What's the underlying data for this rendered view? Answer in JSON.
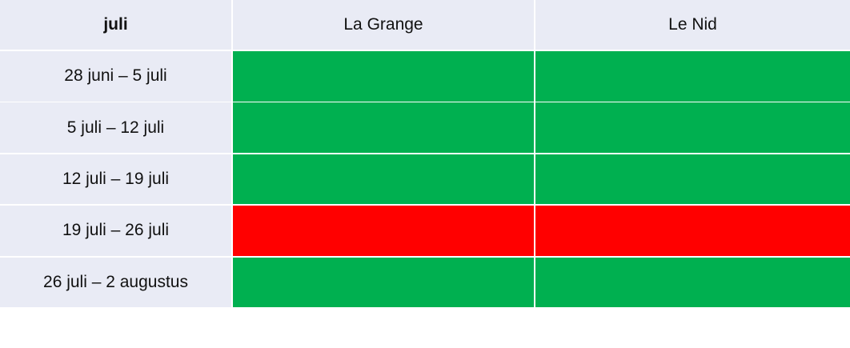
{
  "table": {
    "header": [
      "juli",
      "La Grange",
      "Le Nid"
    ],
    "rows": [
      {
        "label": "28 juni – 5 juli",
        "colors": [
          "#00b050",
          "#00b050"
        ]
      },
      {
        "label": "5 juli – 12 juli",
        "colors": [
          "#00b050",
          "#00b050"
        ]
      },
      {
        "label": "12 juli – 19 juli",
        "colors": [
          "#00b050",
          "#00b050"
        ]
      },
      {
        "label": "19 juli – 26 juli",
        "colors": [
          "#ff0000",
          "#ff0000"
        ]
      },
      {
        "label": "26 juli – 2 augustus",
        "colors": [
          "#00b050",
          "#00b050"
        ]
      }
    ]
  }
}
